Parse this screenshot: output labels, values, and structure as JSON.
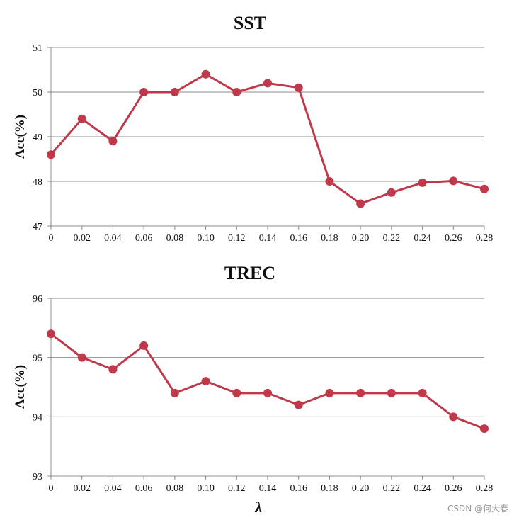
{
  "charts": [
    {
      "title": "SST",
      "ylabel": "Acc(%)"
    },
    {
      "title": "TREC",
      "ylabel": "Acc(%)"
    }
  ],
  "xlabel": "λ",
  "watermark": "CSDN @何大春",
  "colors": {
    "series": "#c0394b",
    "grid": "#8c8c8c"
  },
  "chart_data": [
    {
      "type": "line",
      "title": "SST",
      "xlabel": "",
      "ylabel": "Acc(%)",
      "categories": [
        "0",
        "0.02",
        "0.04",
        "0.06",
        "0.08",
        "0.10",
        "0.12",
        "0.14",
        "0.16",
        "0.18",
        "0.20",
        "0.22",
        "0.24",
        "0.26",
        "0.28"
      ],
      "series": [
        {
          "values": [
            48.6,
            49.4,
            48.9,
            50.0,
            50.0,
            50.4,
            50.0,
            50.2,
            50.1,
            48.0,
            47.5,
            47.75,
            47.97,
            48.01,
            47.83
          ]
        }
      ],
      "yticks": [
        "47",
        "48",
        "49",
        "50",
        "51"
      ],
      "ylim": [
        47,
        51
      ],
      "grid": true,
      "legend": "none"
    },
    {
      "type": "line",
      "title": "TREC",
      "xlabel": "λ",
      "ylabel": "Acc(%)",
      "categories": [
        "0",
        "0.02",
        "0.04",
        "0.06",
        "0.08",
        "0.10",
        "0.12",
        "0.14",
        "0.16",
        "0.18",
        "0.20",
        "0.22",
        "0.24",
        "0.26",
        "0.28"
      ],
      "series": [
        {
          "values": [
            95.4,
            95.0,
            94.8,
            95.2,
            94.4,
            94.6,
            94.4,
            94.4,
            94.2,
            94.4,
            94.4,
            94.4,
            94.4,
            94.0,
            93.8
          ]
        }
      ],
      "yticks": [
        "93",
        "94",
        "95",
        "96"
      ],
      "ylim": [
        93,
        96
      ],
      "grid": true,
      "legend": "none"
    }
  ]
}
